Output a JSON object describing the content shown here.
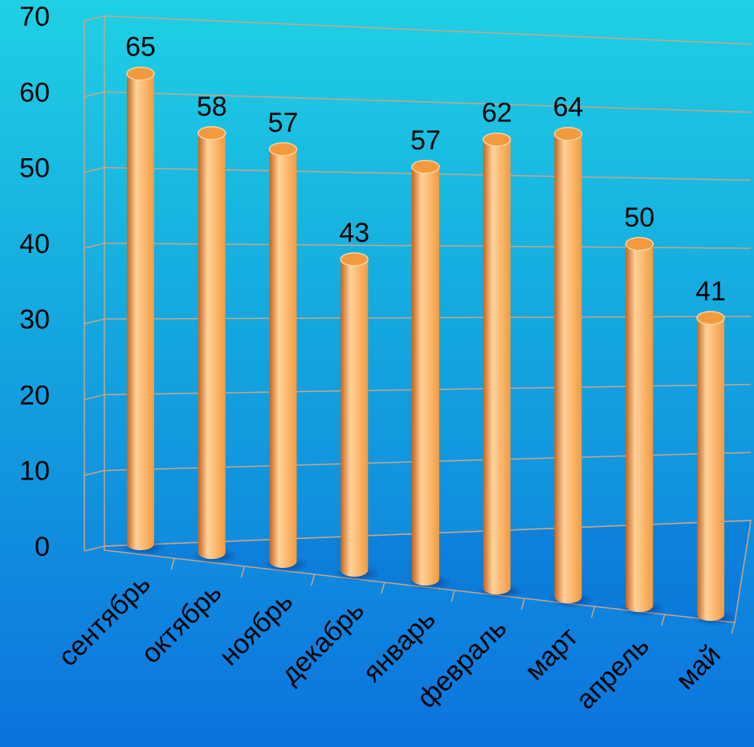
{
  "chart_data": {
    "type": "bar",
    "categories": [
      "сентябрь",
      "октябрь",
      "ноябрь",
      "декабрь",
      "январь",
      "февраль",
      "март",
      "апрель",
      "май"
    ],
    "values": [
      65,
      58,
      57,
      43,
      57,
      62,
      64,
      50,
      41
    ],
    "ylim": [
      0,
      70
    ],
    "yticks": [
      0,
      10,
      20,
      30,
      40,
      50,
      60,
      70
    ],
    "grid": true,
    "style": "3d-cylinder"
  },
  "colors": {
    "bar": "#f39a3f",
    "bar_light": "#ffd29a",
    "bar_dark": "#c8641c",
    "text": "#000000",
    "grid": "#c8a58a"
  }
}
